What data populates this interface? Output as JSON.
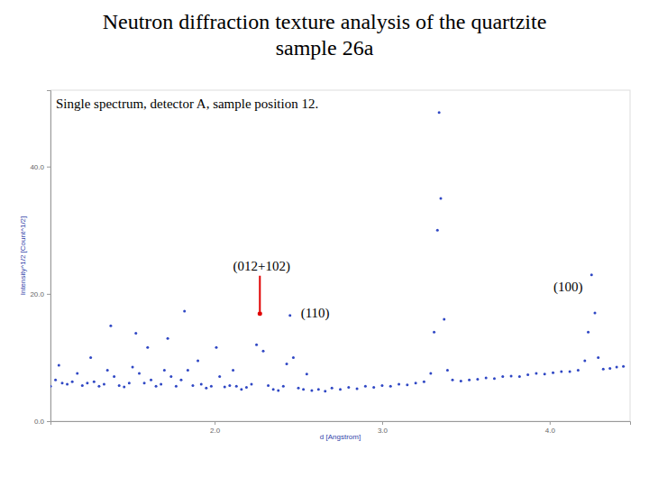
{
  "chart_data": {
    "type": "scatter",
    "title": "Neutron diffraction texture analysis of the quartzite sample 26a",
    "subtitle": "Single spectrum, detector A, sample position 12.",
    "x_label": "d [Angstrom]",
    "y_label": "Intensity^1/2 [Count^1/2]",
    "xlim": [
      1.02,
      4.48
    ],
    "ylim": [
      0,
      52
    ],
    "xticks": [
      {
        "value": 2,
        "label": "2.0"
      },
      {
        "value": 3,
        "label": "3.0"
      },
      {
        "value": 4,
        "label": "4.0"
      }
    ],
    "yticks": [
      {
        "value": 0,
        "label": "0.0"
      },
      {
        "value": 20,
        "label": "20.0"
      },
      {
        "value": 40,
        "label": "40.0"
      }
    ],
    "grid": false,
    "series": [
      {
        "color": "#2f47c4",
        "marker": "dot",
        "x": [
          1.02,
          1.05,
          1.07,
          1.09,
          1.12,
          1.15,
          1.18,
          1.21,
          1.24,
          1.26,
          1.28,
          1.31,
          1.34,
          1.36,
          1.38,
          1.4,
          1.43,
          1.46,
          1.49,
          1.51,
          1.53,
          1.55,
          1.58,
          1.6,
          1.62,
          1.65,
          1.68,
          1.7,
          1.72,
          1.74,
          1.77,
          1.8,
          1.82,
          1.84,
          1.87,
          1.9,
          1.92,
          1.95,
          1.98,
          2.01,
          2.03,
          2.06,
          2.09,
          2.11,
          2.13,
          2.16,
          2.19,
          2.22,
          2.25,
          2.27,
          2.29,
          2.32,
          2.35,
          2.38,
          2.41,
          2.43,
          2.45,
          2.47,
          2.5,
          2.53,
          2.55,
          2.58,
          2.62,
          2.66,
          2.7,
          2.75,
          2.8,
          2.85,
          2.9,
          2.95,
          3.0,
          3.05,
          3.1,
          3.15,
          3.2,
          3.25,
          3.29,
          3.31,
          3.33,
          3.34,
          3.35,
          3.37,
          3.39,
          3.42,
          3.47,
          3.52,
          3.57,
          3.62,
          3.67,
          3.72,
          3.77,
          3.82,
          3.87,
          3.92,
          3.97,
          4.02,
          4.07,
          4.12,
          4.17,
          4.21,
          4.23,
          4.25,
          4.27,
          4.29,
          4.32,
          4.36,
          4.4,
          4.44
        ],
        "values": [
          5.5,
          6.5,
          8.8,
          6.0,
          5.8,
          6.2,
          7.5,
          5.6,
          6.0,
          10.0,
          6.2,
          5.5,
          5.8,
          8.0,
          15.0,
          7.0,
          5.6,
          5.4,
          6.0,
          8.5,
          13.8,
          7.5,
          6.0,
          11.6,
          6.5,
          5.5,
          5.8,
          8.0,
          13.0,
          7.0,
          5.5,
          6.5,
          17.3,
          8.0,
          5.6,
          9.5,
          5.8,
          5.2,
          5.5,
          11.6,
          7.0,
          5.4,
          5.6,
          8.0,
          5.5,
          5.0,
          5.3,
          5.8,
          12.0,
          16.9,
          11.0,
          5.6,
          5.0,
          4.8,
          5.5,
          9.0,
          16.6,
          10.0,
          5.2,
          5.0,
          7.4,
          4.8,
          5.0,
          4.7,
          5.2,
          5.0,
          5.3,
          5.1,
          5.5,
          5.3,
          5.6,
          5.5,
          5.8,
          5.7,
          6.0,
          6.2,
          7.5,
          14.0,
          30.0,
          48.5,
          35.0,
          16.0,
          8.0,
          6.5,
          6.3,
          6.5,
          6.6,
          6.8,
          6.7,
          7.0,
          7.1,
          7.0,
          7.3,
          7.5,
          7.4,
          7.6,
          7.8,
          7.8,
          8.0,
          9.5,
          14.0,
          23.0,
          17.0,
          10.0,
          8.2,
          8.3,
          8.5,
          8.6
        ]
      }
    ],
    "annotations": [
      {
        "text": "(012+102)",
        "x": 2.28,
        "y": 23.7,
        "point": {
          "x": 2.27,
          "y": 16.9
        },
        "color": "#e00000"
      },
      {
        "text": "(110)",
        "x": 2.6,
        "y": 16.3
      },
      {
        "text": "(100)",
        "x": 4.11,
        "y": 20.4
      }
    ]
  }
}
